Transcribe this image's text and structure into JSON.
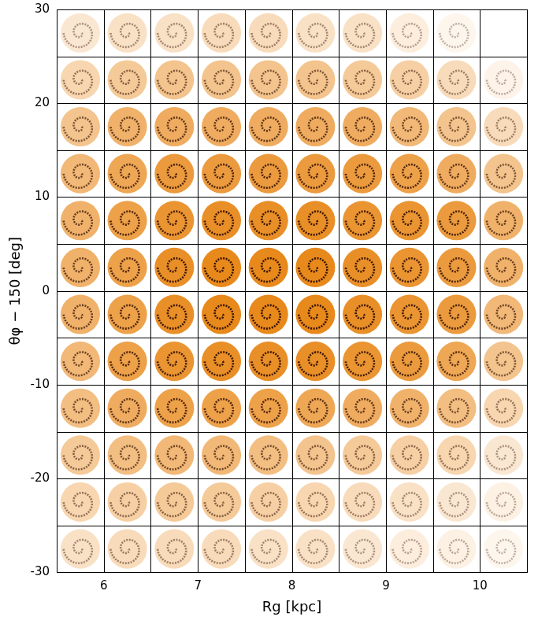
{
  "chart_data": {
    "type": "heatmap",
    "x_label": "Rg [kpc]",
    "y_label": "θφ − 150 [deg]",
    "xlim": [
      5.5,
      10.5
    ],
    "xticks": [
      6,
      7,
      8,
      9,
      10
    ],
    "ylim": [
      -30,
      30
    ],
    "yticks": [
      -30,
      -20,
      -10,
      0,
      10,
      20,
      30
    ],
    "xbins": [
      5.5,
      6,
      6.5,
      7,
      7.5,
      8,
      8.5,
      9,
      9.5,
      10,
      10.5
    ],
    "ybins": [
      -30,
      -25,
      -20,
      -15,
      -10,
      -5,
      0,
      5,
      10,
      15,
      20,
      25,
      30
    ],
    "cells": [
      [
        0.25,
        0.3,
        0.3,
        0.3,
        0.25,
        0.25,
        0.2,
        0.15,
        0.12,
        0.08
      ],
      [
        0.35,
        0.4,
        0.45,
        0.45,
        0.4,
        0.35,
        0.3,
        0.25,
        0.2,
        0.12
      ],
      [
        0.45,
        0.55,
        0.6,
        0.6,
        0.55,
        0.5,
        0.45,
        0.4,
        0.35,
        0.2
      ],
      [
        0.55,
        0.7,
        0.8,
        0.8,
        0.8,
        0.75,
        0.7,
        0.65,
        0.55,
        0.35
      ],
      [
        0.6,
        0.8,
        0.9,
        0.95,
        0.95,
        0.95,
        0.9,
        0.85,
        0.75,
        0.5
      ],
      [
        0.65,
        0.8,
        0.95,
        1,
        1,
        1,
        0.95,
        0.9,
        0.85,
        0.6
      ],
      [
        0.65,
        0.8,
        0.95,
        1,
        1,
        1,
        0.95,
        0.9,
        0.85,
        0.65
      ],
      [
        0.65,
        0.8,
        0.9,
        0.95,
        0.95,
        0.95,
        0.9,
        0.9,
        0.85,
        0.65
      ],
      [
        0.6,
        0.75,
        0.85,
        0.85,
        0.85,
        0.85,
        0.85,
        0.8,
        0.7,
        0.5
      ],
      [
        0.5,
        0.65,
        0.7,
        0.7,
        0.7,
        0.7,
        0.7,
        0.6,
        0.5,
        0.3
      ],
      [
        0.35,
        0.45,
        0.5,
        0.5,
        0.5,
        0.5,
        0.45,
        0.4,
        0.3,
        0.1
      ],
      [
        0.2,
        0.25,
        0.25,
        0.3,
        0.3,
        0.25,
        0.25,
        0.15,
        0.08,
        0
      ]
    ],
    "color": "#e8891c",
    "grid": false
  }
}
